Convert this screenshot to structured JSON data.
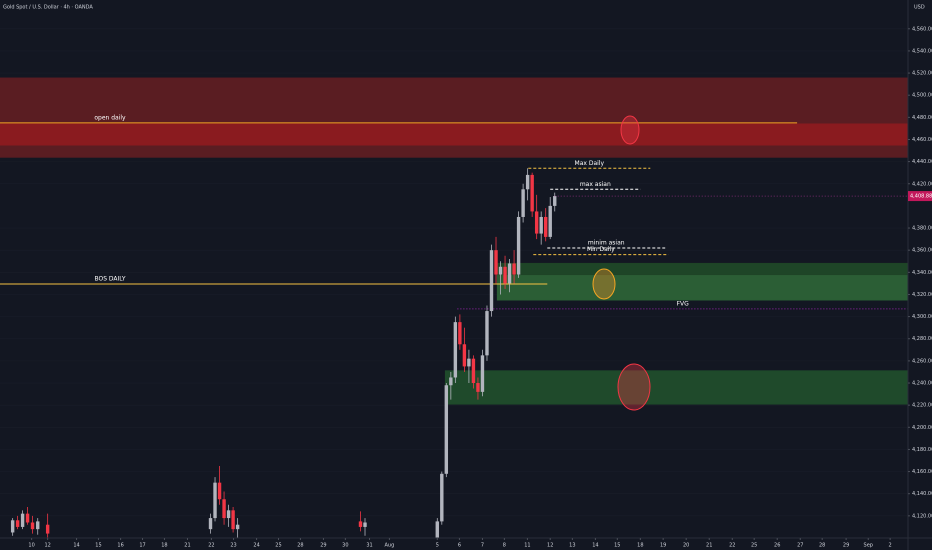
{
  "chart_data": {
    "type": "candlestick",
    "title": "Gold Spot / U.S. Dollar · 4h · OANDA",
    "currency": "USD",
    "xlim": [
      -1.4,
      38.8
    ],
    "ylim": [
      4100,
      4586
    ],
    "grid": true,
    "yticks": [
      {
        "value": 4560,
        "label": "4,560.00"
      },
      {
        "value": 4540,
        "label": "4,540.00"
      },
      {
        "value": 4520,
        "label": "4,520.00"
      },
      {
        "value": 4500,
        "label": "4,500.00"
      },
      {
        "value": 4480,
        "label": "4,480.00"
      },
      {
        "value": 4460,
        "label": "4,460.00"
      },
      {
        "value": 4440,
        "label": "4,440.00"
      },
      {
        "value": 4420,
        "label": "4,420.00"
      },
      {
        "value": 4380,
        "label": "4,380.00"
      },
      {
        "value": 4360,
        "label": "4,360.00"
      },
      {
        "value": 4340,
        "label": "4,340.00"
      },
      {
        "value": 4320,
        "label": "4,320.00"
      },
      {
        "value": 4300,
        "label": "4,300.00"
      },
      {
        "value": 4280,
        "label": "4,280.00"
      },
      {
        "value": 4260,
        "label": "4,260.00"
      },
      {
        "value": 4240,
        "label": "4,240.00"
      },
      {
        "value": 4220,
        "label": "4,220.00"
      },
      {
        "value": 4200,
        "label": "4,200.00"
      },
      {
        "value": 4180,
        "label": "4,180.00"
      },
      {
        "value": 4160,
        "label": "4,160.00"
      },
      {
        "value": 4140,
        "label": "4,140.00"
      },
      {
        "value": 4120,
        "label": "4,120.00"
      }
    ],
    "xticks": [
      {
        "value": 0,
        "label": "10"
      },
      {
        "value": 0.71,
        "label": "12"
      },
      {
        "value": 1.99,
        "label": "14"
      },
      {
        "value": 2.96,
        "label": "15"
      },
      {
        "value": 3.94,
        "label": "16"
      },
      {
        "value": 4.91,
        "label": "17"
      },
      {
        "value": 5.88,
        "label": "18"
      },
      {
        "value": 6.9,
        "label": "21"
      },
      {
        "value": 7.96,
        "label": "22"
      },
      {
        "value": 8.94,
        "label": "23"
      },
      {
        "value": 9.96,
        "label": "24"
      },
      {
        "value": 10.93,
        "label": "25"
      },
      {
        "value": 11.9,
        "label": "28"
      },
      {
        "value": 12.92,
        "label": "29"
      },
      {
        "value": 13.89,
        "label": "30"
      },
      {
        "value": 14.96,
        "label": "31"
      },
      {
        "value": 15.84,
        "label": "Aug"
      },
      {
        "value": 17.96,
        "label": "5"
      },
      {
        "value": 18.94,
        "label": "6"
      },
      {
        "value": 19.96,
        "label": "7"
      },
      {
        "value": 20.93,
        "label": "8"
      },
      {
        "value": 21.95,
        "label": "11"
      },
      {
        "value": 22.96,
        "label": "12"
      },
      {
        "value": 23.94,
        "label": "13"
      },
      {
        "value": 24.96,
        "label": "14"
      },
      {
        "value": 25.93,
        "label": "15"
      },
      {
        "value": 26.95,
        "label": "18"
      },
      {
        "value": 27.96,
        "label": "19"
      },
      {
        "value": 28.98,
        "label": "20"
      },
      {
        "value": 30.0,
        "label": "21"
      },
      {
        "value": 31.02,
        "label": "22"
      },
      {
        "value": 31.99,
        "label": "25"
      },
      {
        "value": 33.01,
        "label": "26"
      },
      {
        "value": 34.03,
        "label": "27"
      },
      {
        "value": 35.0,
        "label": "28"
      },
      {
        "value": 36.06,
        "label": "29"
      },
      {
        "value": 37.04,
        "label": "Sep"
      },
      {
        "value": 38.01,
        "label": "2"
      }
    ],
    "up_color": "#b2b5be",
    "down_color": "#f23645",
    "candles": {
      "x": [
        -0.84,
        -0.62,
        -0.4,
        -0.18,
        0.04,
        0.27,
        0.71,
        7.92,
        8.12,
        8.32,
        8.52,
        8.72,
        8.92,
        9.12,
        14.56,
        14.76,
        17.96,
        18.16,
        18.36,
        18.56,
        18.76,
        18.96,
        19.16,
        19.36,
        19.56,
        19.76,
        19.96,
        20.16,
        20.36,
        20.56,
        20.76,
        20.96,
        21.16,
        21.36,
        21.56,
        21.76,
        21.96,
        22.16,
        22.36,
        22.56,
        22.76,
        22.96,
        23.16
      ],
      "open": [
        4105,
        4116,
        4110,
        4122,
        4114,
        4108,
        4112,
        4108,
        4118,
        4150,
        4135,
        4118,
        4125,
        4108,
        4115,
        4110,
        4100,
        4115,
        4158,
        4238,
        4245,
        4295,
        4275,
        4255,
        4262,
        4240,
        4232,
        4265,
        4305,
        4360,
        4338,
        4345,
        4330,
        4348,
        4338,
        4390,
        4415,
        4428,
        4395,
        4375,
        4390,
        4372,
        4400
      ],
      "high": [
        4118,
        4120,
        4125,
        4128,
        4120,
        4118,
        4122,
        4122,
        4155,
        4165,
        4142,
        4130,
        4128,
        4118,
        4124,
        4118,
        4118,
        4160,
        4240,
        4250,
        4300,
        4302,
        4290,
        4270,
        4265,
        4245,
        4270,
        4310,
        4365,
        4372,
        4350,
        4355,
        4352,
        4360,
        4395,
        4420,
        4434,
        4430,
        4410,
        4395,
        4398,
        4408,
        4412
      ],
      "low": [
        4102,
        4108,
        4108,
        4112,
        4104,
        4103,
        4100,
        4104,
        4115,
        4130,
        4112,
        4110,
        4105,
        4100,
        4106,
        4102,
        4098,
        4112,
        4155,
        4225,
        4240,
        4270,
        4250,
        4240,
        4235,
        4225,
        4228,
        4260,
        4300,
        4330,
        4320,
        4325,
        4322,
        4330,
        4335,
        4385,
        4405,
        4390,
        4370,
        4365,
        4368,
        4370,
        4395
      ],
      "close": [
        4116,
        4110,
        4122,
        4114,
        4108,
        4115,
        4104,
        4118,
        4150,
        4135,
        4118,
        4125,
        4108,
        4112,
        4110,
        4114,
        4115,
        4158,
        4238,
        4245,
        4295,
        4275,
        4255,
        4262,
        4240,
        4232,
        4265,
        4305,
        4360,
        4338,
        4345,
        4330,
        4348,
        4338,
        4390,
        4415,
        4428,
        4395,
        4375,
        4390,
        4372,
        4400,
        4408.88
      ]
    },
    "last_price": {
      "value": 4408.88,
      "label": "4,408.88"
    },
    "zones": [
      {
        "low": 4444,
        "high": 4515.5,
        "start": -1.4,
        "color": "#5a1d22"
      },
      {
        "low": 4455,
        "high": 4474,
        "start": -1.4,
        "color": "#8a1b1f"
      },
      {
        "low": 4315,
        "high": 4348,
        "start": 20.62,
        "color": "#2b5e35"
      },
      {
        "low": 4338,
        "high": 4348,
        "start": 20.62,
        "color": "#1e4527"
      },
      {
        "low": 4221,
        "high": 4251,
        "start": 18.32,
        "color": "#1f4a2b"
      }
    ],
    "levels": [
      {
        "label": "open daily",
        "value": 4475,
        "start": -1.4,
        "end": 33.89,
        "color": "#f5a623",
        "style": "solid"
      },
      {
        "label": "BOS DAILY",
        "value": 4329.5,
        "start": -1.4,
        "end": 22.83,
        "color": "#f5c242",
        "style": "solid"
      },
      {
        "label": "Max Daily",
        "value": 4434,
        "start": 21.99,
        "end": 27.39,
        "color": "#f5c242",
        "style": "dashed"
      },
      {
        "label": "max asian",
        "value": 4415,
        "start": 22.96,
        "end": 26.95,
        "color": "#ffffff",
        "style": "dashed"
      },
      {
        "label": "minim asian",
        "value": 4362,
        "start": 22.83,
        "end": 28.05,
        "color": "#ffffff",
        "style": "dashed"
      },
      {
        "label": "Min Daily",
        "value": 4356,
        "start": 22.21,
        "end": 28.19,
        "color": "#f5c242",
        "style": "dashed"
      },
      {
        "label": "FVG",
        "value": 4307,
        "start": 18.85,
        "end": 38.8,
        "color": "#9c27b0",
        "style": "dotted"
      }
    ]
  }
}
